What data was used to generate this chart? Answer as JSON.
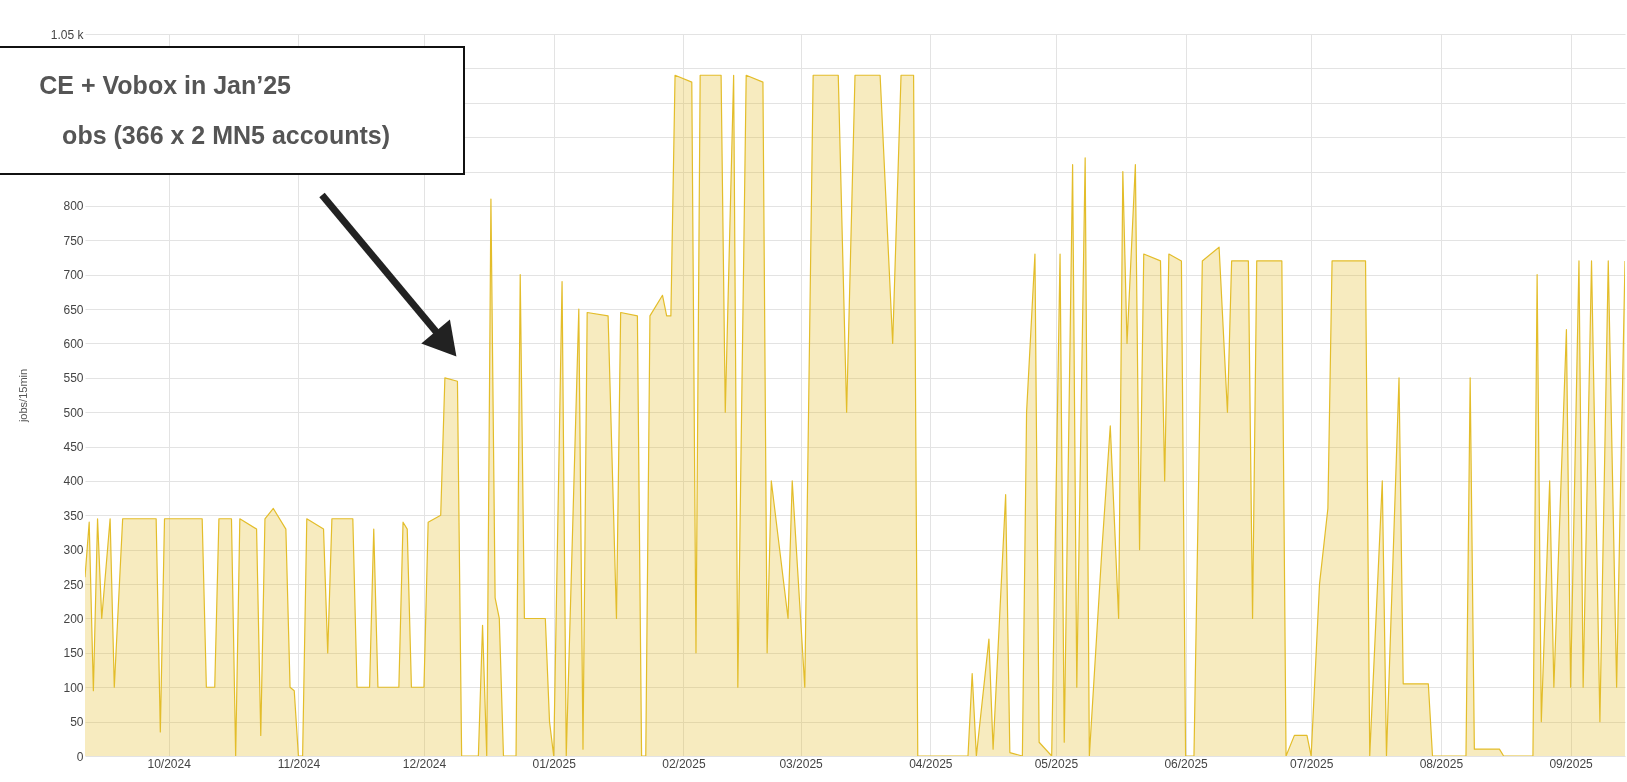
{
  "chart_data": {
    "type": "area",
    "ylabel": "jobs/15min",
    "annotations": [
      "CE + Vobox in Jan’25",
      "obs (366 x 2 MN5 accounts)"
    ],
    "x": [
      "2024-09-11",
      "2024-09-12",
      "2024-09-13",
      "2024-09-14",
      "2024-09-15",
      "2024-09-17",
      "2024-09-18",
      "2024-09-20",
      "2024-09-21",
      "2024-09-28",
      "2024-09-29",
      "2024-09-30",
      "2024-10-09",
      "2024-10-10",
      "2024-10-12",
      "2024-10-13",
      "2024-10-16",
      "2024-10-17",
      "2024-10-18",
      "2024-10-22",
      "2024-10-23",
      "2024-10-24",
      "2024-10-26",
      "2024-10-29",
      "2024-10-30",
      "2024-10-31",
      "2024-11-01",
      "2024-11-02",
      "2024-11-03",
      "2024-11-07",
      "2024-11-08",
      "2024-11-09",
      "2024-11-14",
      "2024-11-15",
      "2024-11-18",
      "2024-11-19",
      "2024-11-20",
      "2024-11-25",
      "2024-11-26",
      "2024-11-27",
      "2024-11-28",
      "2024-12-01",
      "2024-12-02",
      "2024-12-05",
      "2024-12-06",
      "2024-12-09",
      "2024-12-10",
      "2024-12-14",
      "2024-12-15",
      "2024-12-16",
      "2024-12-17",
      "2024-12-18",
      "2024-12-19",
      "2024-12-20",
      "2024-12-23",
      "2024-12-24",
      "2024-12-25",
      "2024-12-30",
      "2024-12-31",
      "2025-01-01",
      "2025-01-03",
      "2025-01-04",
      "2025-01-07",
      "2025-01-08",
      "2025-01-09",
      "2025-01-14",
      "2025-01-16",
      "2025-01-17",
      "2025-01-21",
      "2025-01-22",
      "2025-01-23",
      "2025-01-24",
      "2025-01-27",
      "2025-01-28",
      "2025-01-29",
      "2025-01-30",
      "2025-02-03",
      "2025-02-04",
      "2025-02-05",
      "2025-02-10",
      "2025-02-11",
      "2025-02-13",
      "2025-02-14",
      "2025-02-16",
      "2025-02-20",
      "2025-02-21",
      "2025-02-22",
      "2025-02-24",
      "2025-02-26",
      "2025-02-27",
      "2025-03-01",
      "2025-03-02",
      "2025-03-04",
      "2025-03-10",
      "2025-03-12",
      "2025-03-14",
      "2025-03-20",
      "2025-03-23",
      "2025-03-25",
      "2025-03-28",
      "2025-03-29",
      "2025-04-10",
      "2025-04-11",
      "2025-04-12",
      "2025-04-15",
      "2025-04-16",
      "2025-04-19",
      "2025-04-20",
      "2025-04-23",
      "2025-04-24",
      "2025-04-26",
      "2025-04-27",
      "2025-04-30",
      "2025-05-02",
      "2025-05-03",
      "2025-05-05",
      "2025-05-06",
      "2025-05-08",
      "2025-05-09",
      "2025-05-12",
      "2025-05-14",
      "2025-05-16",
      "2025-05-17",
      "2025-05-18",
      "2025-05-20",
      "2025-05-21",
      "2025-05-22",
      "2025-05-26",
      "2025-05-27",
      "2025-05-28",
      "2025-05-31",
      "2025-06-01",
      "2025-06-03",
      "2025-06-05",
      "2025-06-09",
      "2025-06-11",
      "2025-06-12",
      "2025-06-16",
      "2025-06-17",
      "2025-06-18",
      "2025-06-24",
      "2025-06-25",
      "2025-06-27",
      "2025-06-30",
      "2025-07-01",
      "2025-07-03",
      "2025-07-05",
      "2025-07-06",
      "2025-07-14",
      "2025-07-15",
      "2025-07-18",
      "2025-07-19",
      "2025-07-22",
      "2025-07-23",
      "2025-07-29",
      "2025-07-30",
      "2025-08-07",
      "2025-08-08",
      "2025-08-09",
      "2025-08-15",
      "2025-08-16",
      "2025-08-23",
      "2025-08-24",
      "2025-08-25",
      "2025-08-27",
      "2025-08-28",
      "2025-08-31",
      "2025-09-01",
      "2025-09-03",
      "2025-09-04",
      "2025-09-06",
      "2025-09-08",
      "2025-09-10",
      "2025-09-12",
      "2025-09-14"
    ],
    "series": [
      {
        "color": "#e3bd2a",
        "values": [
          260,
          340,
          95,
          345,
          200,
          345,
          100,
          345,
          345,
          345,
          35,
          345,
          345,
          100,
          100,
          345,
          345,
          0,
          345,
          330,
          30,
          345,
          360,
          330,
          100,
          95,
          0,
          0,
          345,
          330,
          150,
          345,
          345,
          100,
          100,
          330,
          100,
          100,
          340,
          330,
          100,
          100,
          340,
          350,
          550,
          545,
          0,
          0,
          190,
          0,
          810,
          230,
          200,
          0,
          0,
          700,
          200,
          200,
          50,
          0,
          690,
          0,
          650,
          10,
          645,
          640,
          200,
          645,
          640,
          0,
          0,
          640,
          670,
          640,
          640,
          990,
          980,
          150,
          990,
          990,
          500,
          990,
          100,
          990,
          980,
          150,
          400,
          300,
          200,
          400,
          200,
          100,
          990,
          990,
          500,
          990,
          990,
          600,
          990,
          990,
          0,
          0,
          120,
          0,
          170,
          10,
          380,
          5,
          0,
          500,
          730,
          20,
          0,
          730,
          20,
          860,
          100,
          870,
          0,
          300,
          480,
          200,
          850,
          600,
          860,
          300,
          730,
          720,
          400,
          730,
          720,
          0,
          0,
          720,
          740,
          500,
          720,
          720,
          200,
          720,
          720,
          0,
          30,
          30,
          0,
          250,
          360,
          720,
          720,
          0,
          400,
          0,
          550,
          105,
          105,
          0,
          0,
          550,
          10,
          10,
          0,
          0,
          700,
          50,
          400,
          100,
          620,
          100,
          720,
          100,
          720,
          50,
          720,
          100,
          720
        ]
      }
    ],
    "xlim": [
      "2024-09-11",
      "2025-09-14"
    ],
    "xticks": [
      {
        "value": "2024-10-01",
        "label": "10/2024"
      },
      {
        "value": "2024-11-01",
        "label": "11/2024"
      },
      {
        "value": "2024-12-01",
        "label": "12/2024"
      },
      {
        "value": "2025-01-01",
        "label": "01/2025"
      },
      {
        "value": "2025-02-01",
        "label": "02/2025"
      },
      {
        "value": "2025-03-01",
        "label": "03/2025"
      },
      {
        "value": "2025-04-01",
        "label": "04/2025"
      },
      {
        "value": "2025-05-01",
        "label": "05/2025"
      },
      {
        "value": "2025-06-01",
        "label": "06/2025"
      },
      {
        "value": "2025-07-01",
        "label": "07/2025"
      },
      {
        "value": "2025-08-01",
        "label": "08/2025"
      },
      {
        "value": "2025-09-01",
        "label": "09/2025"
      }
    ],
    "ylim": [
      0,
      1050
    ],
    "yticks": [
      0,
      50,
      100,
      150,
      200,
      250,
      300,
      350,
      400,
      450,
      500,
      550,
      600,
      650,
      700,
      750,
      800,
      {
        "value": 850,
        "label": null
      },
      {
        "value": 900,
        "label": null
      },
      {
        "value": 950,
        "label": null
      },
      {
        "value": 1000,
        "label": null
      },
      {
        "value": 1050,
        "label": "1.05 k"
      }
    ],
    "grid": true
  }
}
